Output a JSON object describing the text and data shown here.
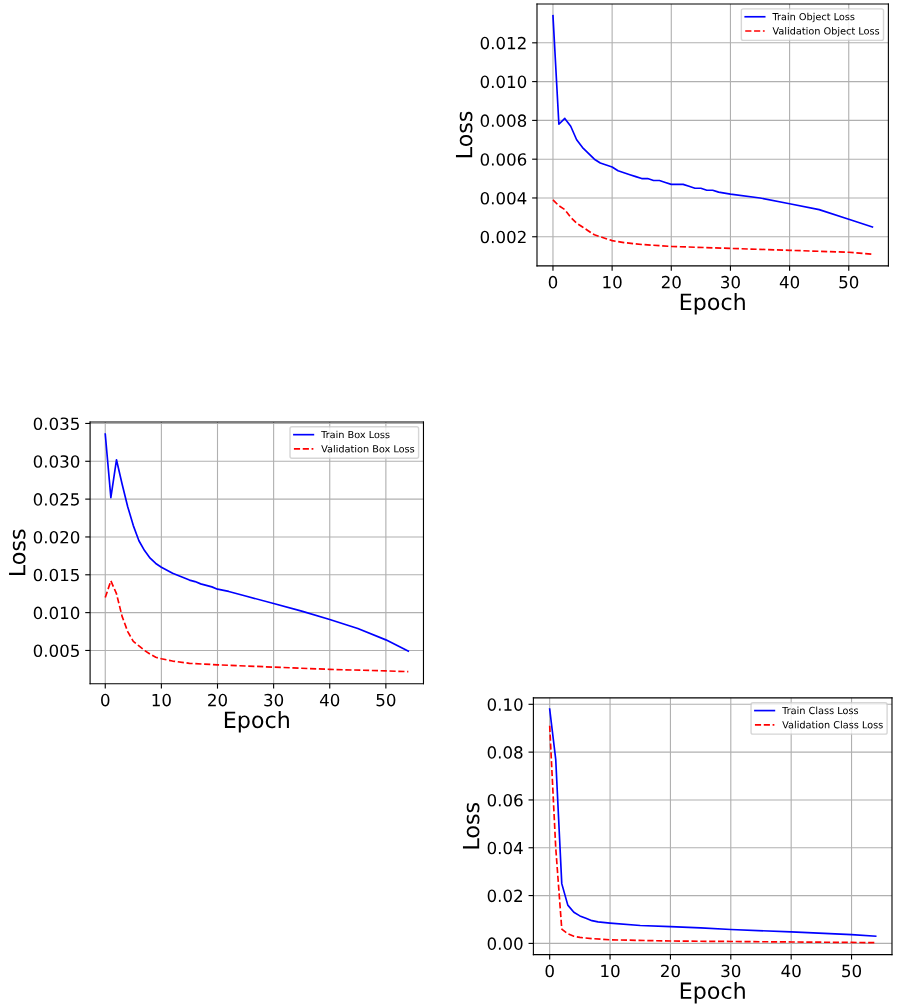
{
  "chart_data": [
    {
      "type": "line",
      "xlabel": "Epoch",
      "ylabel": "Loss",
      "grid": true,
      "legend": "top right",
      "xlim": [
        -2.7,
        56.7
      ],
      "xticks": [
        0,
        10,
        20,
        30,
        40,
        50
      ],
      "ylim": [
        0.0005,
        0.014
      ],
      "yticks": [
        0.002,
        0.004,
        0.006,
        0.008,
        {
          "value": 0.01,
          "label": "0.010"
        },
        0.012
      ],
      "series": [
        {
          "name": "Train Object Loss",
          "color": "#0000ff",
          "line_style": "solid",
          "x": [
            0,
            1,
            2,
            3,
            4,
            5,
            6,
            7,
            8,
            9,
            10,
            11,
            12,
            13,
            14,
            15,
            16,
            17,
            18,
            19,
            20,
            22,
            23,
            24,
            25,
            26,
            27,
            28,
            30,
            35,
            40,
            45,
            50,
            54
          ],
          "values": [
            0.0134,
            0.0078,
            0.0081,
            0.0077,
            0.007,
            0.0066,
            0.0063,
            0.006,
            0.0058,
            0.0057,
            0.0056,
            0.0054,
            0.0053,
            0.0052,
            0.0051,
            0.005,
            0.005,
            0.0049,
            0.0049,
            0.0048,
            0.0047,
            0.0047,
            0.0046,
            0.0045,
            0.0045,
            0.0044,
            0.0044,
            0.0043,
            0.0042,
            0.004,
            0.0037,
            0.0034,
            0.0029,
            0.0025
          ]
        },
        {
          "name": "Validation Object Loss",
          "color": "#ff0000",
          "line_style": "dashed",
          "x": [
            0,
            1,
            2,
            3,
            4,
            5,
            6,
            7,
            8,
            9,
            10,
            12,
            15,
            20,
            30,
            40,
            50,
            54
          ],
          "values": [
            0.0039,
            0.0036,
            0.0034,
            0.003,
            0.0027,
            0.0025,
            0.0023,
            0.0021,
            0.002,
            0.0019,
            0.0018,
            0.0017,
            0.0016,
            0.0015,
            0.0014,
            0.0013,
            0.0012,
            0.0011
          ]
        }
      ]
    },
    {
      "type": "line",
      "xlabel": "Epoch",
      "ylabel": "Loss",
      "grid": true,
      "legend": "top right",
      "xlim": [
        -2.7,
        56.7
      ],
      "xticks": [
        0,
        10,
        20,
        30,
        40,
        50
      ],
      "ylim": [
        0.0006,
        0.0352
      ],
      "yticks": [
        0.005,
        {
          "value": 0.01,
          "label": "0.010"
        },
        0.015,
        {
          "value": 0.02,
          "label": "0.020"
        },
        0.025,
        {
          "value": 0.03,
          "label": "0.030"
        },
        0.035
      ],
      "series": [
        {
          "name": "Train Box Loss",
          "color": "#0000ff",
          "line_style": "solid",
          "x": [
            0,
            1,
            2,
            3,
            4,
            5,
            6,
            7,
            8,
            9,
            10,
            11,
            12,
            13,
            14,
            15,
            16,
            17,
            18,
            19,
            20,
            22,
            25,
            30,
            35,
            40,
            45,
            50,
            54
          ],
          "values": [
            0.0336,
            0.0252,
            0.0302,
            0.027,
            0.024,
            0.0215,
            0.0195,
            0.0182,
            0.0172,
            0.0165,
            0.016,
            0.0156,
            0.0152,
            0.0149,
            0.0146,
            0.0143,
            0.0141,
            0.0138,
            0.0136,
            0.0134,
            0.0131,
            0.0128,
            0.0122,
            0.0112,
            0.0102,
            0.0091,
            0.0079,
            0.0064,
            0.0049
          ]
        },
        {
          "name": "Validation Box Loss",
          "color": "#ff0000",
          "line_style": "dashed",
          "x": [
            0,
            1,
            2,
            3,
            4,
            5,
            6,
            7,
            8,
            9,
            10,
            12,
            15,
            20,
            30,
            40,
            50,
            54
          ],
          "values": [
            0.012,
            0.0142,
            0.0125,
            0.0095,
            0.0075,
            0.0062,
            0.0056,
            0.005,
            0.0045,
            0.0041,
            0.0039,
            0.0036,
            0.0033,
            0.0031,
            0.0028,
            0.0025,
            0.0023,
            0.0022
          ]
        }
      ]
    },
    {
      "type": "line",
      "xlabel": "Epoch",
      "ylabel": "Loss",
      "grid": true,
      "legend": "top right",
      "xlim": [
        -2.7,
        56.7
      ],
      "xticks": [
        0,
        10,
        20,
        30,
        40,
        50
      ],
      "ylim": [
        -0.0047,
        0.1027
      ],
      "yticks": [
        {
          "value": 0.0,
          "label": "0.00"
        },
        {
          "value": 0.02,
          "label": "0.02"
        },
        {
          "value": 0.04,
          "label": "0.04"
        },
        {
          "value": 0.06,
          "label": "0.06"
        },
        {
          "value": 0.08,
          "label": "0.08"
        },
        {
          "value": 0.1,
          "label": "0.10"
        }
      ],
      "series": [
        {
          "name": "Train Class Loss",
          "color": "#0000ff",
          "line_style": "solid",
          "x": [
            0,
            1,
            2,
            3,
            4,
            5,
            6,
            7,
            8,
            10,
            15,
            20,
            25,
            30,
            40,
            50,
            54
          ],
          "values": [
            0.098,
            0.077,
            0.025,
            0.016,
            0.013,
            0.0115,
            0.0105,
            0.0095,
            0.009,
            0.0085,
            0.0075,
            0.007,
            0.0065,
            0.0058,
            0.0048,
            0.0037,
            0.003
          ]
        },
        {
          "name": "Validation Class Loss",
          "color": "#ff0000",
          "line_style": "dashed",
          "x": [
            0,
            1,
            2,
            3,
            4,
            5,
            7,
            10,
            20,
            30,
            40,
            50,
            54
          ],
          "values": [
            0.091,
            0.04,
            0.006,
            0.004,
            0.003,
            0.0025,
            0.002,
            0.0015,
            0.001,
            0.0008,
            0.0006,
            0.0004,
            0.0003
          ]
        }
      ]
    }
  ]
}
